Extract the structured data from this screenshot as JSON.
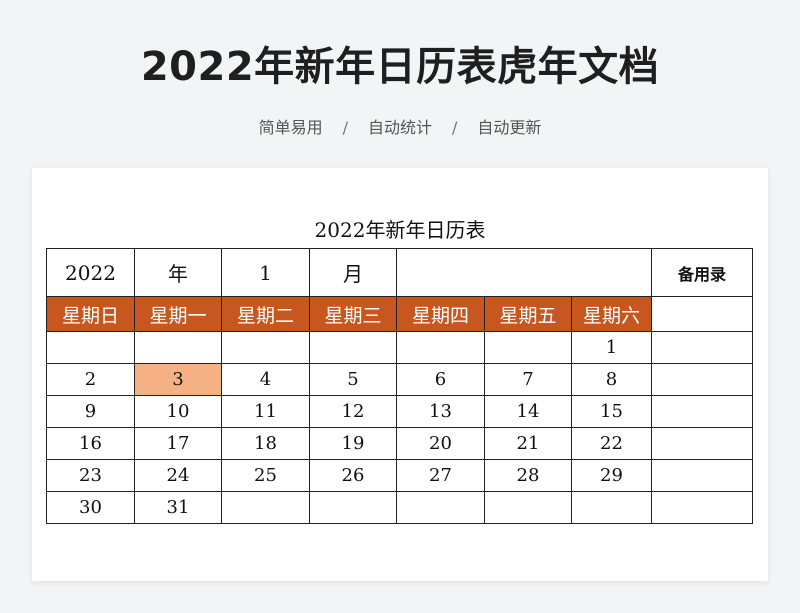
{
  "header": {
    "title": "2022年新年日历表虎年文档",
    "subtitle_items": [
      "简单易用",
      "自动统计",
      "自动更新"
    ],
    "separator": "/"
  },
  "sheet": {
    "title": "2022年新年日历表",
    "year": "2022",
    "year_label": "年",
    "month": "1",
    "month_label": "月",
    "memo_label": "备用录",
    "weekdays": [
      "星期日",
      "星期一",
      "星期二",
      "星期三",
      "星期四",
      "星期五",
      "星期六"
    ],
    "weeks": [
      [
        "",
        "",
        "",
        "",
        "",
        "",
        "1"
      ],
      [
        "2",
        "3",
        "4",
        "5",
        "6",
        "7",
        "8"
      ],
      [
        "9",
        "10",
        "11",
        "12",
        "13",
        "14",
        "15"
      ],
      [
        "16",
        "17",
        "18",
        "19",
        "20",
        "21",
        "22"
      ],
      [
        "23",
        "24",
        "25",
        "26",
        "27",
        "28",
        "29"
      ],
      [
        "30",
        "31",
        "",
        "",
        "",
        "",
        ""
      ]
    ],
    "highlighted_day": "3",
    "colors": {
      "weekday_header_bg": "#c8561f",
      "weekday_header_text": "#ffffff",
      "highlight_bg": "#f4b183"
    }
  }
}
